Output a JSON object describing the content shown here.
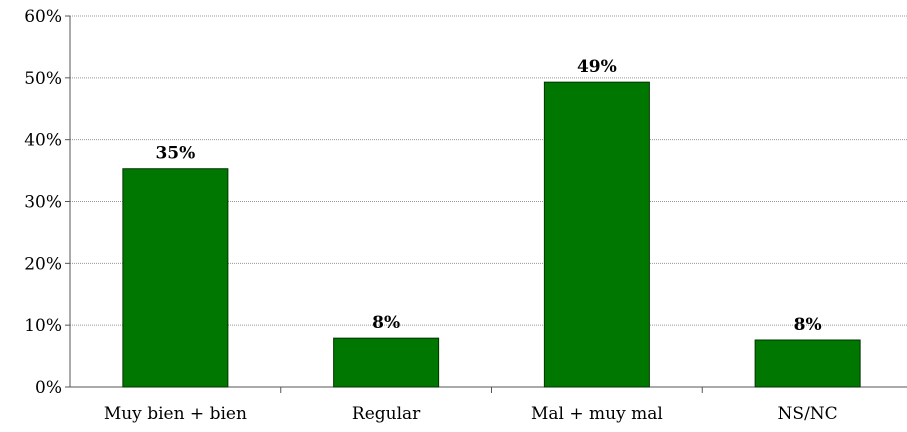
{
  "chart_data": {
    "type": "bar",
    "categories": [
      "Muy bien + bien",
      "Regular",
      "Mal + muy mal",
      "NS/NC"
    ],
    "values": [
      35.3,
      7.9,
      49.3,
      7.6
    ],
    "data_labels": [
      "35%",
      "8%",
      "49%",
      "8%"
    ],
    "title": "",
    "xlabel": "",
    "ylabel": "",
    "ylim": [
      0,
      60
    ],
    "yticks": [
      0,
      10,
      20,
      30,
      40,
      50,
      60
    ],
    "ytick_labels": [
      "0%",
      "10%",
      "20%",
      "30%",
      "40%",
      "50%",
      "60%"
    ],
    "grid": true,
    "legend": "none",
    "bar_color": "#007700",
    "bar_edge_color": "#003300",
    "grid_color": "#999999"
  }
}
